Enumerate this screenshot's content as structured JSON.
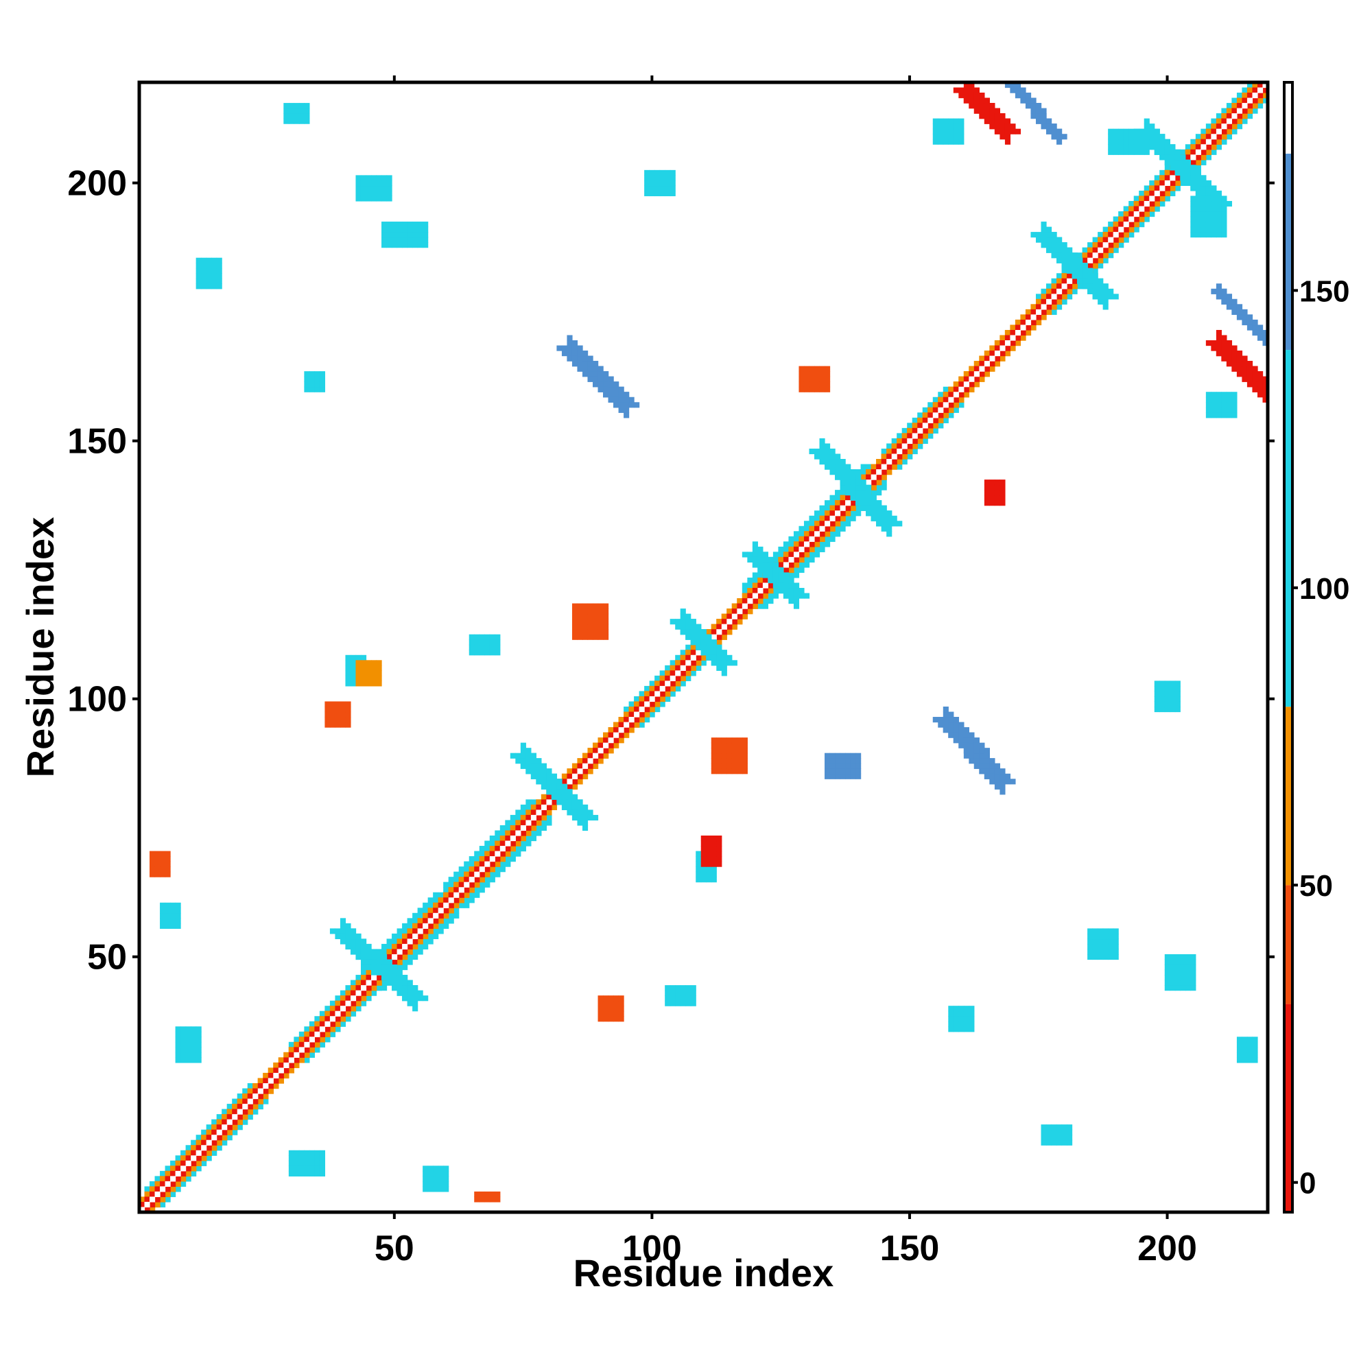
{
  "chart_data": {
    "type": "heatmap",
    "title": "",
    "xlabel": "Residue index",
    "ylabel": "Residue index",
    "xlim": [
      1,
      219
    ],
    "ylim": [
      1,
      219
    ],
    "xticks": [
      50,
      100,
      150,
      200
    ],
    "yticks": [
      50,
      100,
      150,
      200
    ],
    "grid": false,
    "colorbar": {
      "ticks": [
        0,
        50,
        100,
        150
      ],
      "range": [
        -5,
        185
      ],
      "bands": [
        {
          "from": -5,
          "to": 30,
          "color": "#e8160c"
        },
        {
          "from": 30,
          "to": 50,
          "color": "#f04e10"
        },
        {
          "from": 50,
          "to": 80,
          "color": "#f29000"
        },
        {
          "from": 80,
          "to": 140,
          "color": "#22d3e6"
        },
        {
          "from": 140,
          "to": 173,
          "color": "#4f8fd0"
        },
        {
          "from": 173,
          "to": 185,
          "color": "#ffffff"
        }
      ]
    },
    "colors": {
      "red": "#e8160c",
      "red_orange": "#f04e10",
      "orange": "#f29000",
      "cyan": "#22d3e6",
      "steel": "#4f8fd0"
    },
    "regions": [
      {
        "kind": "diag",
        "from": 1,
        "to": 219,
        "width": 0,
        "color": "#ffffff"
      },
      {
        "kind": "diag",
        "from": 1,
        "to": 219,
        "width": 1,
        "color": "#e8160c"
      },
      {
        "kind": "diag",
        "from": 1,
        "to": 219,
        "width": 2,
        "color": "#f29000"
      },
      {
        "kind": "diag",
        "from": 2,
        "to": 25,
        "width": 3,
        "color": "#22d3e6"
      },
      {
        "kind": "diag",
        "from": 30,
        "to": 48,
        "width": 3,
        "color": "#22d3e6"
      },
      {
        "kind": "diag",
        "from": 44,
        "to": 62,
        "width": 4,
        "color": "#22d3e6"
      },
      {
        "kind": "diag",
        "from": 60,
        "to": 80,
        "width": 4,
        "color": "#22d3e6"
      },
      {
        "kind": "diag",
        "from": 95,
        "to": 113,
        "width": 3,
        "color": "#22d3e6"
      },
      {
        "kind": "diag",
        "from": 118,
        "to": 145,
        "width": 4,
        "color": "#22d3e6"
      },
      {
        "kind": "diag",
        "from": 145,
        "to": 160,
        "width": 3,
        "color": "#22d3e6"
      },
      {
        "kind": "diag",
        "from": 175,
        "to": 219,
        "width": 3,
        "color": "#22d3e6"
      },
      {
        "kind": "anti",
        "i0": 161,
        "j0": 218,
        "i1": 169,
        "j1": 210,
        "width": 2,
        "color": "#e8160c"
      },
      {
        "kind": "anti",
        "i0": 170,
        "j0": 219,
        "i1": 179,
        "j1": 209,
        "width": 1,
        "color": "#4f8fd0"
      },
      {
        "kind": "anti",
        "i0": 84,
        "j0": 168,
        "i1": 95,
        "j1": 157,
        "width": 2,
        "color": "#4f8fd0"
      },
      {
        "kind": "anti",
        "i0": 157,
        "j0": 96,
        "i1": 168,
        "j1": 84,
        "width": 2,
        "color": "#4f8fd0"
      },
      {
        "kind": "anti",
        "i0": 210,
        "j0": 169,
        "i1": 219,
        "j1": 160,
        "width": 2,
        "color": "#e8160c"
      },
      {
        "kind": "anti",
        "i0": 210,
        "j0": 179,
        "i1": 219,
        "j1": 170,
        "width": 1,
        "color": "#4f8fd0"
      },
      {
        "kind": "anti",
        "i0": 75,
        "j0": 89,
        "i1": 87,
        "j1": 77,
        "width": 2,
        "color": "#22d3e6"
      },
      {
        "kind": "anti",
        "i0": 106,
        "j0": 115,
        "i1": 114,
        "j1": 107,
        "width": 2,
        "color": "#22d3e6"
      },
      {
        "kind": "anti",
        "i0": 133,
        "j0": 148,
        "i1": 146,
        "j1": 134,
        "width": 2,
        "color": "#22d3e6"
      },
      {
        "kind": "anti",
        "i0": 120,
        "j0": 128,
        "i1": 128,
        "j1": 120,
        "width": 2,
        "color": "#22d3e6"
      },
      {
        "kind": "anti",
        "i0": 176,
        "j0": 190,
        "i1": 188,
        "j1": 178,
        "width": 2,
        "color": "#22d3e6"
      },
      {
        "kind": "anti",
        "i0": 196,
        "j0": 210,
        "i1": 210,
        "j1": 196,
        "width": 2,
        "color": "#22d3e6"
      },
      {
        "kind": "anti",
        "i0": 40,
        "j0": 55,
        "i1": 54,
        "j1": 42,
        "width": 2,
        "color": "#22d3e6"
      },
      {
        "kind": "rect",
        "i0": 155,
        "i1": 160,
        "j0": 208,
        "j1": 212,
        "color": "#22d3e6"
      },
      {
        "kind": "rect",
        "i0": 208,
        "i1": 213,
        "j0": 155,
        "j1": 159,
        "color": "#22d3e6"
      },
      {
        "kind": "rect",
        "i0": 189,
        "i1": 196,
        "j0": 206,
        "j1": 210,
        "color": "#22d3e6"
      },
      {
        "kind": "rect",
        "i0": 205,
        "i1": 211,
        "j0": 190,
        "j1": 197,
        "color": "#22d3e6"
      },
      {
        "kind": "rect",
        "i0": 43,
        "i1": 49,
        "j0": 197,
        "j1": 201,
        "color": "#22d3e6"
      },
      {
        "kind": "rect",
        "i0": 48,
        "i1": 56,
        "j0": 188,
        "j1": 192,
        "color": "#22d3e6"
      },
      {
        "kind": "rect",
        "i0": 99,
        "i1": 104,
        "j0": 198,
        "j1": 202,
        "color": "#22d3e6"
      },
      {
        "kind": "rect",
        "i0": 198,
        "i1": 202,
        "j0": 98,
        "j1": 103,
        "color": "#22d3e6"
      },
      {
        "kind": "rect",
        "i0": 29,
        "i1": 33,
        "j0": 212,
        "j1": 215,
        "color": "#22d3e6"
      },
      {
        "kind": "rect",
        "i0": 33,
        "i1": 36,
        "j0": 160,
        "j1": 163,
        "color": "#22d3e6"
      },
      {
        "kind": "rect",
        "i0": 85,
        "i1": 91,
        "j0": 112,
        "j1": 118,
        "color": "#f04e10"
      },
      {
        "kind": "rect",
        "i0": 112,
        "i1": 118,
        "j0": 86,
        "j1": 92,
        "color": "#f04e10"
      },
      {
        "kind": "rect",
        "i0": 200,
        "i1": 205,
        "j0": 44,
        "j1": 50,
        "color": "#22d3e6"
      },
      {
        "kind": "rect",
        "i0": 66,
        "i1": 70,
        "j0": 3,
        "j1": 4,
        "color": "#f04e10"
      },
      {
        "kind": "rect",
        "i0": 3,
        "i1": 6,
        "j0": 66,
        "j1": 70,
        "color": "#f04e10"
      },
      {
        "kind": "rect",
        "i0": 8,
        "i1": 12,
        "j0": 30,
        "j1": 36,
        "color": "#22d3e6"
      },
      {
        "kind": "rect",
        "i0": 30,
        "i1": 36,
        "j0": 8,
        "j1": 12,
        "color": "#22d3e6"
      },
      {
        "kind": "rect",
        "i0": 56,
        "i1": 60,
        "j0": 5,
        "j1": 9,
        "color": "#22d3e6"
      },
      {
        "kind": "rect",
        "i0": 5,
        "i1": 8,
        "j0": 56,
        "j1": 60,
        "color": "#22d3e6"
      },
      {
        "kind": "rect",
        "i0": 103,
        "i1": 108,
        "j0": 41,
        "j1": 44,
        "color": "#22d3e6"
      },
      {
        "kind": "rect",
        "i0": 41,
        "i1": 44,
        "j0": 103,
        "j1": 108,
        "color": "#22d3e6"
      },
      {
        "kind": "rect",
        "i0": 65,
        "i1": 70,
        "j0": 109,
        "j1": 112,
        "color": "#22d3e6"
      },
      {
        "kind": "rect",
        "i0": 109,
        "i1": 112,
        "j0": 65,
        "j1": 70,
        "color": "#22d3e6"
      },
      {
        "kind": "rect",
        "i0": 158,
        "i1": 162,
        "j0": 36,
        "j1": 40,
        "color": "#22d3e6"
      },
      {
        "kind": "rect",
        "i0": 176,
        "i1": 181,
        "j0": 14,
        "j1": 17,
        "color": "#22d3e6"
      },
      {
        "kind": "rect",
        "i0": 214,
        "i1": 217,
        "j0": 30,
        "j1": 34,
        "color": "#22d3e6"
      },
      {
        "kind": "rect",
        "i0": 185,
        "i1": 190,
        "j0": 50,
        "j1": 55,
        "color": "#22d3e6"
      },
      {
        "kind": "rect",
        "i0": 165,
        "i1": 168,
        "j0": 138,
        "j1": 142,
        "color": "#e8160c"
      },
      {
        "kind": "rect",
        "i0": 129,
        "i1": 134,
        "j0": 160,
        "j1": 164,
        "color": "#f04e10"
      },
      {
        "kind": "rect",
        "i0": 37,
        "i1": 41,
        "j0": 95,
        "j1": 99,
        "color": "#f04e10"
      },
      {
        "kind": "rect",
        "i0": 90,
        "i1": 94,
        "j0": 38,
        "j1": 42,
        "color": "#f04e10"
      },
      {
        "kind": "rect",
        "i0": 110,
        "i1": 113,
        "j0": 68,
        "j1": 73,
        "color": "#e8160c"
      },
      {
        "kind": "rect",
        "i0": 134,
        "i1": 140,
        "j0": 85,
        "j1": 89,
        "color": "#4f8fd0"
      },
      {
        "kind": "rect",
        "i0": 12,
        "i1": 16,
        "j0": 180,
        "j1": 185,
        "color": "#22d3e6"
      },
      {
        "kind": "rect",
        "i0": 43,
        "i1": 47,
        "j0": 103,
        "j1": 107,
        "color": "#f29000"
      }
    ]
  }
}
